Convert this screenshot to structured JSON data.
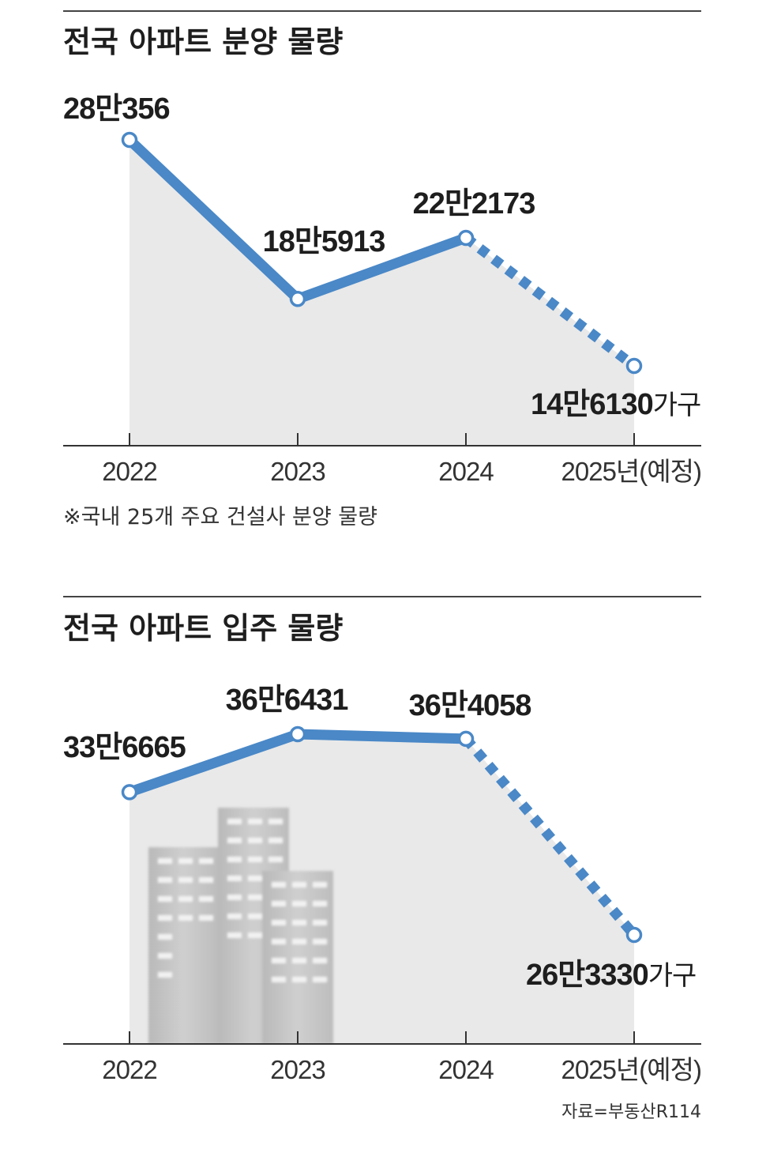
{
  "chart_data": [
    {
      "type": "line",
      "title": "전국 아파트 분양 물량",
      "categories": [
        "2022",
        "2023",
        "2024",
        "2025년(예정)"
      ],
      "values": [
        280356,
        185913,
        222173,
        146130
      ],
      "value_labels": [
        "28만356",
        "18만5913",
        "22만2173",
        "14만6130"
      ],
      "unit": "가구",
      "projected_from_index": 2,
      "note": "※국내 25개 주요 건설사 분양 물량",
      "ylim": [
        0,
        300000
      ]
    },
    {
      "type": "line",
      "title": "전국 아파트 입주 물량",
      "categories": [
        "2022",
        "2023",
        "2024",
        "2025년(예정)"
      ],
      "values": [
        336665,
        366431,
        364058,
        263330
      ],
      "value_labels": [
        "33만6665",
        "36만6431",
        "36만4058",
        "26만3330"
      ],
      "unit": "가구",
      "projected_from_index": 2,
      "ylim": [
        0,
        400000
      ]
    }
  ],
  "source": "자료=부동산R114",
  "colors": {
    "line": "#4a88c7",
    "fill": "#e9e9e9",
    "axis": "#333333",
    "marker_fill": "#ffffff"
  }
}
